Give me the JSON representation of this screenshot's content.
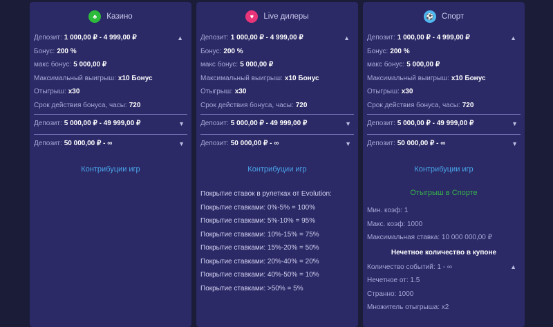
{
  "columns": [
    {
      "title": "Казино",
      "icon": "casino-chip-icon",
      "icon_color": "#2dbb3c",
      "tier1": {
        "deposit_label": "Депозит:",
        "deposit": "1 000,00 ₽ - 4 999,00 ₽",
        "rows": [
          [
            "Бонус:",
            "200 %"
          ],
          [
            "макс бонус:",
            "5 000,00 ₽"
          ],
          [
            "Максимальный выигрыш:",
            "x10 Бонус"
          ],
          [
            "Отыгрыш:",
            "x30"
          ],
          [
            "Срок действия бонуса, часы:",
            "720"
          ]
        ]
      },
      "tier2": {
        "label": "Депозит:",
        "value": "5 000,00 ₽ - 49 999,00 ₽"
      },
      "tier3": {
        "label": "Депозит:",
        "value": "50 000,00 ₽ - ∞"
      },
      "link": "Контрибуции игр"
    },
    {
      "title": "Live дилеры",
      "icon": "live-dealer-icon",
      "icon_color": "#e8357a",
      "tier1": {
        "deposit_label": "Депозит:",
        "deposit": "1 000,00 ₽ - 4 999,00 ₽",
        "rows": [
          [
            "Бонус:",
            "200 %"
          ],
          [
            "макс бонус:",
            "5 000,00 ₽"
          ],
          [
            "Максимальный выигрыш:",
            "x10 Бонус"
          ],
          [
            "Отыгрыш:",
            "x30"
          ],
          [
            "Срок действия бонуса, часы:",
            "720"
          ]
        ]
      },
      "tier2": {
        "label": "Депозит:",
        "value": "5 000,00 ₽ - 49 999,00 ₽"
      },
      "tier3": {
        "label": "Депозит:",
        "value": "50 000,00 ₽ - ∞"
      },
      "link": "Контрибуции игр",
      "coverage": [
        "Покрытие ставок в рулетках от Evolution:",
        "Покрытие ставками: 0%-5% = 100%",
        "Покрытие ставками: 5%-10% = 95%",
        "Покрытие ставками: 10%-15% = 75%",
        "Покрытие ставками: 15%-20% = 50%",
        "Покрытие ставками: 20%-40% = 20%",
        "Покрытие ставками: 40%-50% = 10%",
        "Покрытие ставками: >50% = 5%"
      ]
    },
    {
      "title": "Спорт",
      "icon": "soccer-ball-icon",
      "icon_color": "#4fb7ee",
      "tier1": {
        "deposit_label": "Депозит:",
        "deposit": "1 000,00 ₽ - 4 999,00 ₽",
        "rows": [
          [
            "Бонус:",
            "200 %"
          ],
          [
            "макс бонус:",
            "5 000,00 ₽"
          ],
          [
            "Максимальный выигрыш:",
            "x10 Бонус"
          ],
          [
            "Отыгрыш:",
            "x30"
          ],
          [
            "Срок действия бонуса, часы:",
            "720"
          ]
        ]
      },
      "tier2": {
        "label": "Депозит:",
        "value": "5 000,00 ₽ - 49 999,00 ₽"
      },
      "tier3": {
        "label": "Депозит:",
        "value": "50 000,00 ₽ - ∞"
      },
      "link": "Контрибуции игр",
      "sport_title": "Отыгрыш в Спорте",
      "sport_rows": [
        "Мин. коэф: 1",
        "Макс. коэф: 1000",
        "Максимальная ставка: 10 000 000,00 ₽"
      ],
      "odd_title": "Нечетное количество в купоне",
      "odd_rows": [
        "Количество событий: 1 - ∞",
        "Нечетное от: 1.5",
        "Странно: 1000",
        "Множитель отыгрыша: x2"
      ]
    }
  ]
}
